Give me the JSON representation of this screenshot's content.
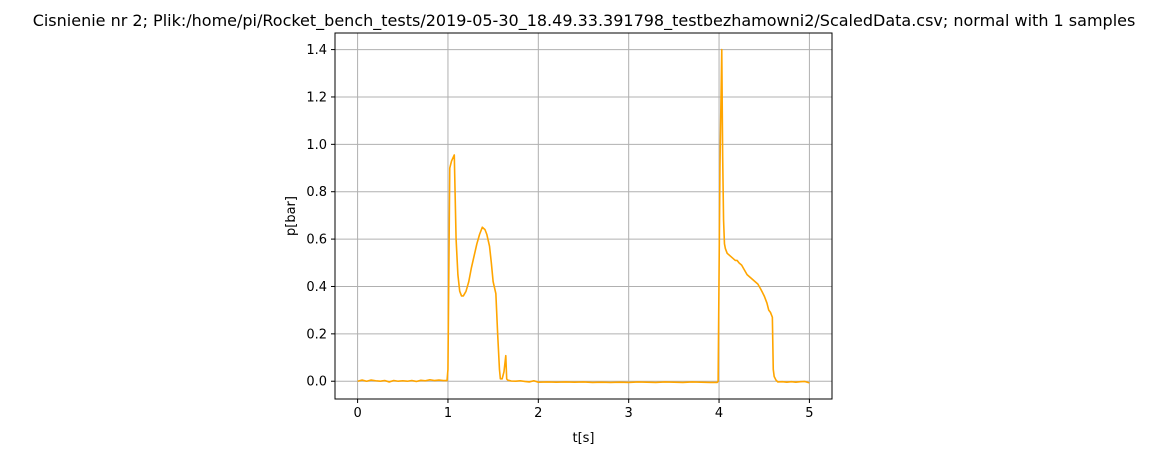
{
  "chart_data": {
    "type": "line",
    "title": "Cisnienie nr 2; Plik:/home/pi/Rocket_bench_tests/2019-05-30_18.49.33.391798_testbezhamowni2/ScaledData.csv; normal with 1 samples",
    "xlabel": "t[s]",
    "ylabel": "p[bar]",
    "xlim": [
      -0.25,
      5.25
    ],
    "ylim": [
      -0.075,
      1.47
    ],
    "xticks": [
      0,
      1,
      2,
      3,
      4,
      5
    ],
    "xtick_labels": [
      "0",
      "1",
      "2",
      "3",
      "4",
      "5"
    ],
    "yticks": [
      0.0,
      0.2,
      0.4,
      0.6,
      0.8,
      1.0,
      1.2,
      1.4
    ],
    "ytick_labels": [
      "0.0",
      "0.2",
      "0.4",
      "0.6",
      "0.8",
      "1.0",
      "1.2",
      "1.4"
    ],
    "grid": true,
    "legend": "none",
    "series": [
      {
        "color": "#ffa500",
        "x": [
          0.0,
          0.05,
          0.1,
          0.15,
          0.2,
          0.25,
          0.3,
          0.35,
          0.4,
          0.45,
          0.5,
          0.55,
          0.6,
          0.65,
          0.7,
          0.75,
          0.8,
          0.85,
          0.9,
          0.95,
          0.99,
          1.0,
          1.02,
          1.04,
          1.07,
          1.09,
          1.11,
          1.13,
          1.15,
          1.17,
          1.2,
          1.23,
          1.26,
          1.29,
          1.32,
          1.35,
          1.38,
          1.41,
          1.43,
          1.46,
          1.48,
          1.5,
          1.53,
          1.55,
          1.57,
          1.58,
          1.59,
          1.6,
          1.62,
          1.64,
          1.65,
          1.66,
          1.68,
          1.7,
          1.75,
          1.8,
          1.85,
          1.9,
          1.95,
          2.0,
          2.1,
          2.2,
          2.3,
          2.4,
          2.5,
          2.6,
          2.7,
          2.8,
          2.9,
          3.0,
          3.1,
          3.2,
          3.3,
          3.4,
          3.5,
          3.6,
          3.7,
          3.8,
          3.9,
          3.98,
          3.99,
          4.01,
          4.03,
          4.04,
          4.05,
          4.06,
          4.07,
          4.09,
          4.12,
          4.15,
          4.18,
          4.2,
          4.22,
          4.25,
          4.28,
          4.31,
          4.34,
          4.37,
          4.4,
          4.43,
          4.46,
          4.5,
          4.53,
          4.55,
          4.57,
          4.59,
          4.6,
          4.61,
          4.63,
          4.65,
          4.7,
          4.75,
          4.8,
          4.85,
          4.9,
          4.95,
          5.0
        ],
        "y": [
          0.0,
          0.005,
          0.0,
          0.005,
          0.002,
          0.0,
          0.003,
          -0.003,
          0.003,
          0.0,
          0.002,
          0.0,
          0.003,
          -0.001,
          0.004,
          0.002,
          0.006,
          0.003,
          0.005,
          0.003,
          0.003,
          0.05,
          0.9,
          0.93,
          0.955,
          0.6,
          0.45,
          0.38,
          0.36,
          0.36,
          0.38,
          0.42,
          0.48,
          0.53,
          0.58,
          0.62,
          0.65,
          0.64,
          0.62,
          0.57,
          0.5,
          0.42,
          0.37,
          0.2,
          0.05,
          0.01,
          0.01,
          0.01,
          0.04,
          0.108,
          0.01,
          0.005,
          0.003,
          0.001,
          0.0,
          0.002,
          -0.001,
          -0.003,
          0.002,
          -0.004,
          -0.003,
          -0.004,
          -0.003,
          -0.004,
          -0.003,
          -0.005,
          -0.004,
          -0.005,
          -0.004,
          -0.005,
          -0.003,
          -0.004,
          -0.005,
          -0.003,
          -0.004,
          -0.005,
          -0.003,
          -0.004,
          -0.005,
          -0.005,
          0.0,
          0.9,
          1.4,
          0.95,
          0.68,
          0.58,
          0.56,
          0.54,
          0.53,
          0.52,
          0.51,
          0.51,
          0.5,
          0.49,
          0.47,
          0.45,
          0.44,
          0.43,
          0.42,
          0.41,
          0.39,
          0.36,
          0.33,
          0.3,
          0.29,
          0.27,
          0.05,
          0.02,
          0.005,
          -0.003,
          -0.002,
          -0.004,
          -0.002,
          -0.004,
          -0.002,
          -0.001,
          -0.007
        ]
      }
    ]
  }
}
